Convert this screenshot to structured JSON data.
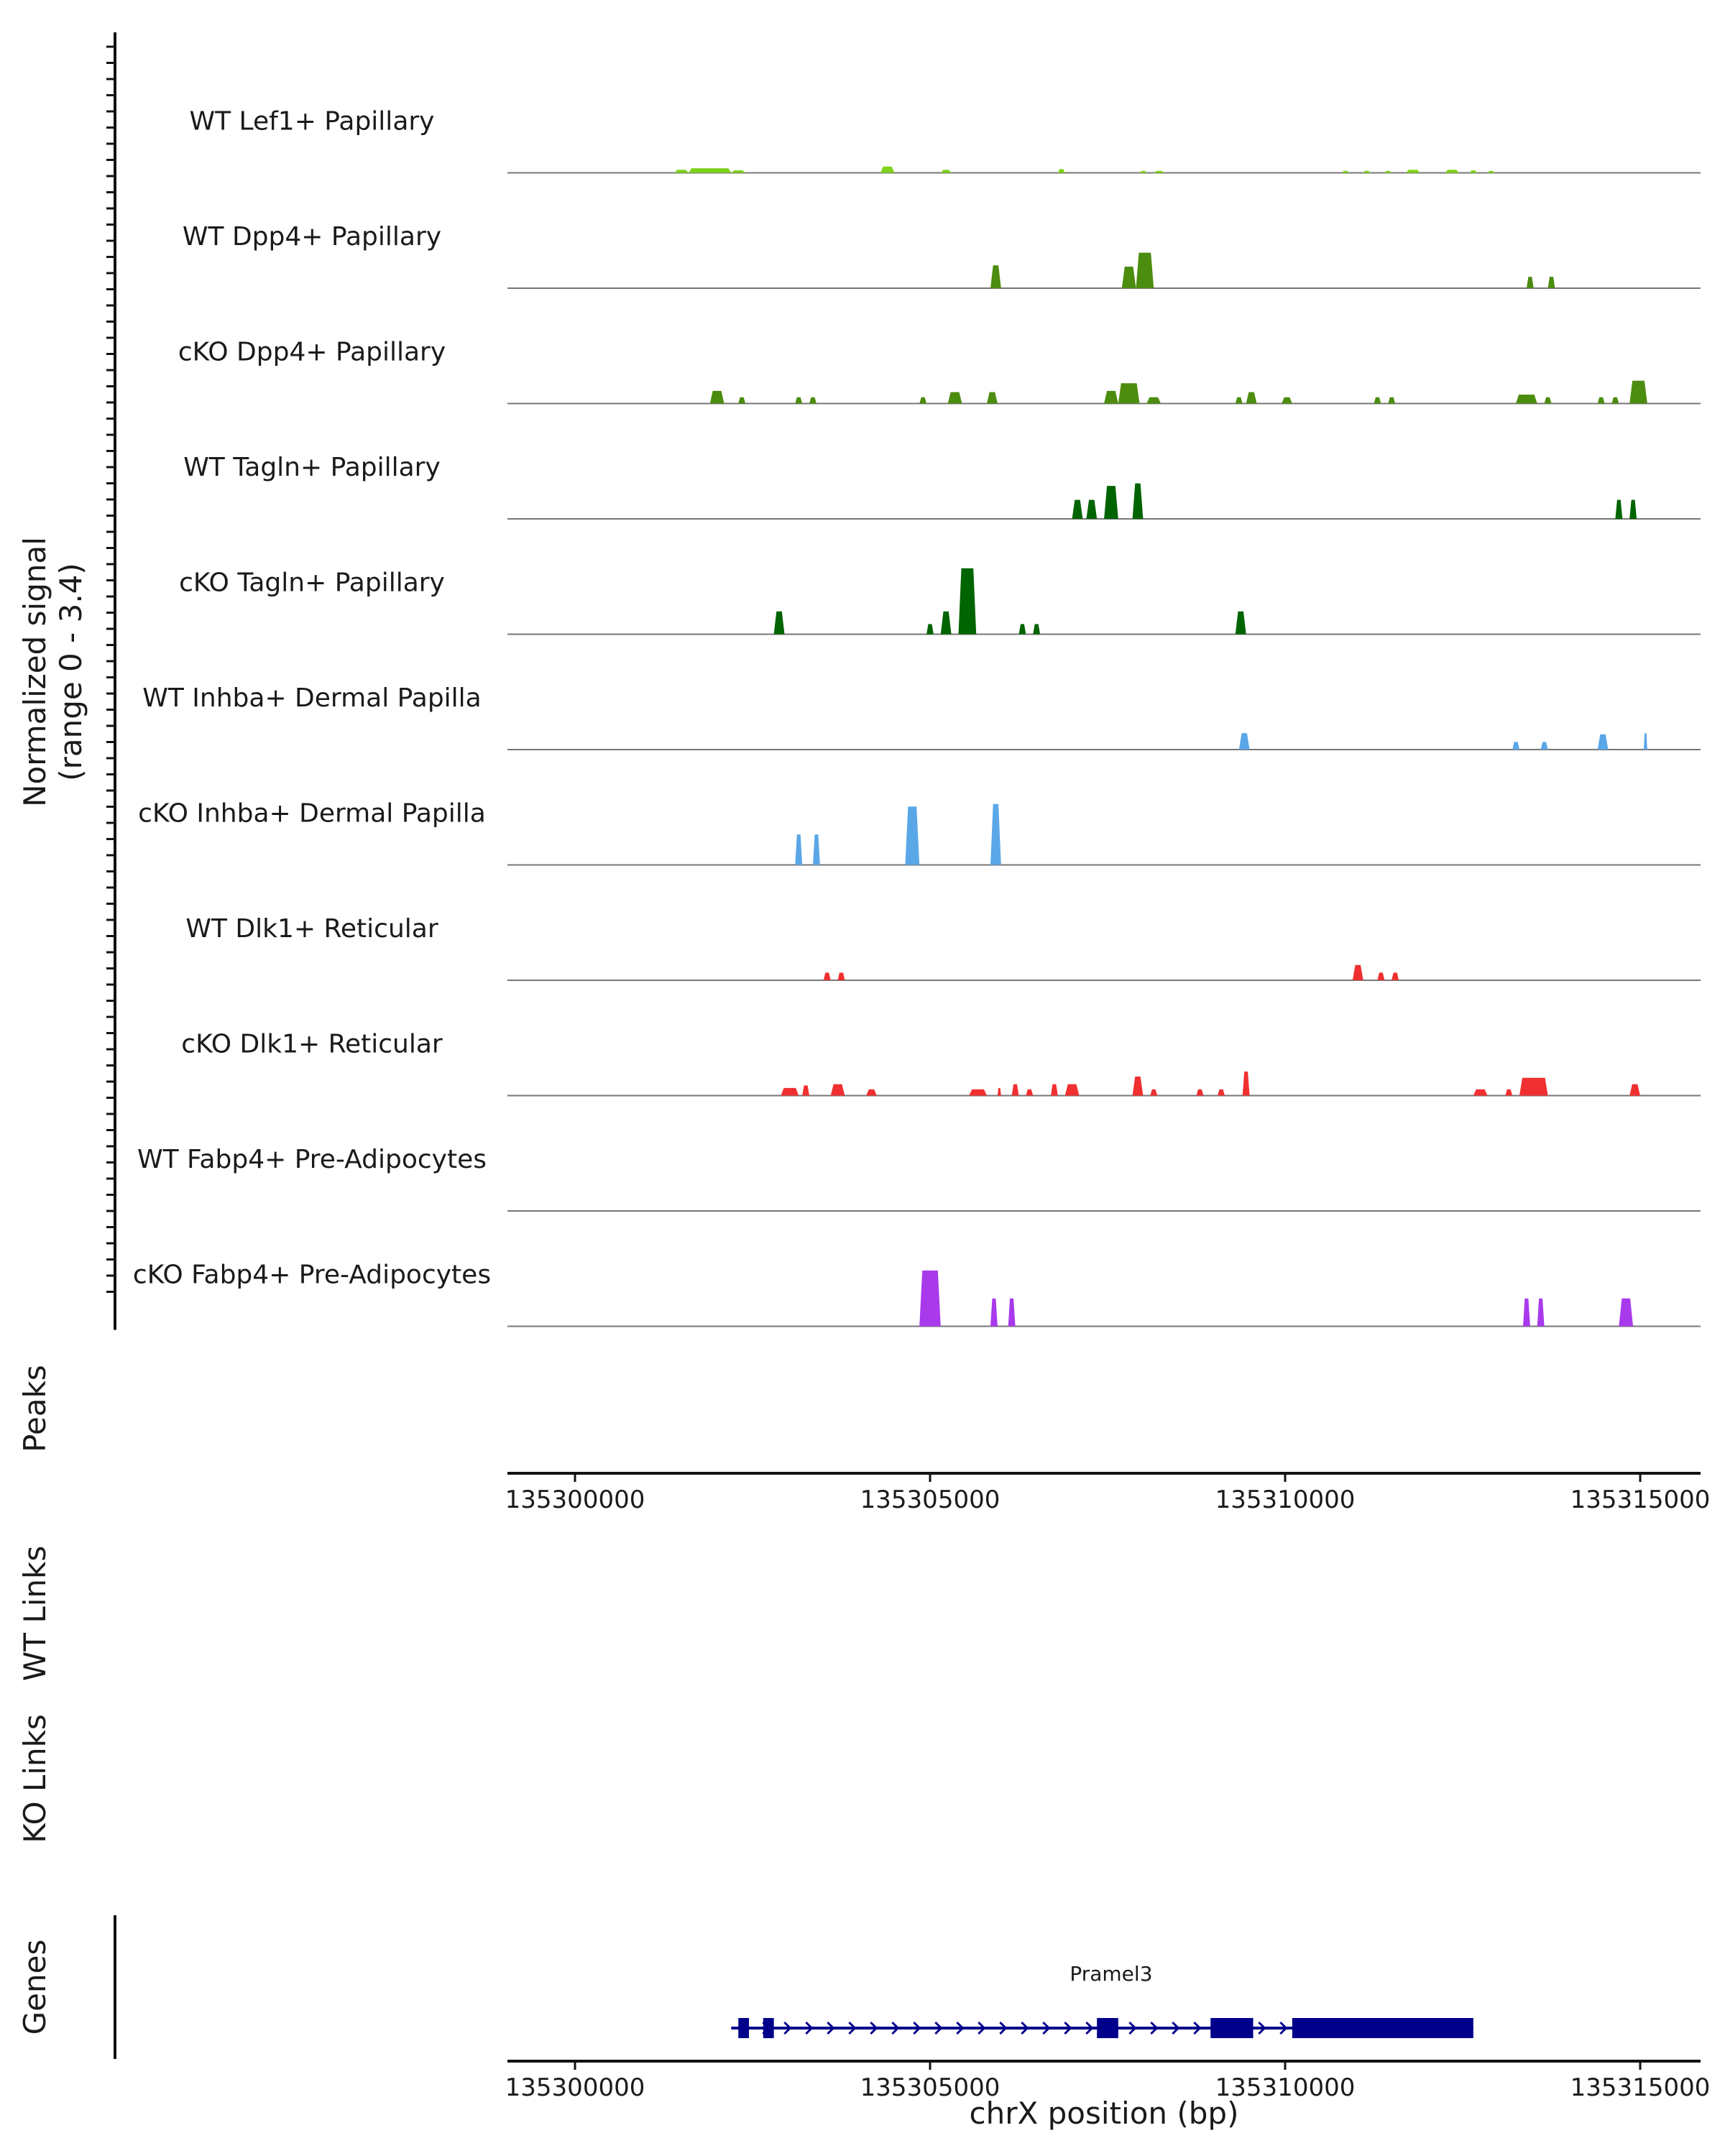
{
  "chart_data": {
    "type": "area",
    "title": "",
    "ylabel_line1": "Normalized signal",
    "ylabel_line2": "(range 0 - 3.4)",
    "ylim": [
      0,
      3.4
    ],
    "xlabel": "chrX position (bp)",
    "xlim": [
      135299000,
      135316000
    ],
    "xticks": [
      135300000,
      135305000,
      135310000,
      135315000
    ],
    "tracks": [
      {
        "name": "WT Lef1+ Papillary",
        "color": "#7FD11B",
        "peaks": [
          [
            135301400,
            135301600,
            0.12
          ],
          [
            135301600,
            135302200,
            0.18
          ],
          [
            135302200,
            135302400,
            0.1
          ],
          [
            135304300,
            135304500,
            0.25
          ],
          [
            135305150,
            135305300,
            0.12
          ],
          [
            135306800,
            135306900,
            0.15
          ],
          [
            135307950,
            135308050,
            0.08
          ],
          [
            135308150,
            135308300,
            0.08
          ],
          [
            135310800,
            135310900,
            0.08
          ],
          [
            135311100,
            135311200,
            0.08
          ],
          [
            135311400,
            135311500,
            0.08
          ],
          [
            135311700,
            135311900,
            0.12
          ],
          [
            135312250,
            135312450,
            0.12
          ],
          [
            135312600,
            135312700,
            0.1
          ],
          [
            135312850,
            135312950,
            0.08
          ]
        ]
      },
      {
        "name": "WT Dpp4+ Papillary",
        "color": "#4C8C0F",
        "peaks": [
          [
            135305850,
            135306000,
            0.9
          ],
          [
            135307700,
            135307900,
            0.85
          ],
          [
            135307900,
            135308150,
            1.4
          ],
          [
            135313400,
            135313500,
            0.45
          ],
          [
            135313700,
            135313800,
            0.45
          ]
        ]
      },
      {
        "name": "cKO Dpp4+ Papillary",
        "color": "#4C8C0F",
        "peaks": [
          [
            135301900,
            135302100,
            0.5
          ],
          [
            135302300,
            135302400,
            0.25
          ],
          [
            135303100,
            135303200,
            0.25
          ],
          [
            135303300,
            135303400,
            0.25
          ],
          [
            135304850,
            135304950,
            0.25
          ],
          [
            135305250,
            135305450,
            0.45
          ],
          [
            135305800,
            135305950,
            0.45
          ],
          [
            135307450,
            135307650,
            0.5
          ],
          [
            135307650,
            135307950,
            0.8
          ],
          [
            135308050,
            135308250,
            0.25
          ],
          [
            135309300,
            135309400,
            0.25
          ],
          [
            135309450,
            135309600,
            0.45
          ],
          [
            135309950,
            135310100,
            0.25
          ],
          [
            135311250,
            135311350,
            0.25
          ],
          [
            135311450,
            135311550,
            0.25
          ],
          [
            135313250,
            135313550,
            0.35
          ],
          [
            135313650,
            135313750,
            0.25
          ],
          [
            135314400,
            135314500,
            0.25
          ],
          [
            135314600,
            135314700,
            0.25
          ],
          [
            135314850,
            135315100,
            0.9
          ]
        ]
      },
      {
        "name": "WT Tagln+ Papillary",
        "color": "#006400",
        "peaks": [
          [
            135307000,
            135307150,
            0.75
          ],
          [
            135307200,
            135307350,
            0.75
          ],
          [
            135307450,
            135307650,
            1.3
          ],
          [
            135307850,
            135308000,
            1.4
          ],
          [
            135314650,
            135314750,
            0.75
          ],
          [
            135314850,
            135314950,
            0.75
          ]
        ]
      },
      {
        "name": "cKO Tagln+ Papillary",
        "color": "#006400",
        "peaks": [
          [
            135302800,
            135302950,
            0.9
          ],
          [
            135304950,
            135305050,
            0.4
          ],
          [
            135305150,
            135305300,
            0.9
          ],
          [
            135305400,
            135305650,
            2.6
          ],
          [
            135306250,
            135306350,
            0.4
          ],
          [
            135306450,
            135306550,
            0.4
          ],
          [
            135309300,
            135309450,
            0.9
          ]
        ]
      },
      {
        "name": "WT Inhba+ Dermal Papilla",
        "color": "#5AA7E8",
        "peaks": [
          [
            135309350,
            135309500,
            0.65
          ],
          [
            135313200,
            135313300,
            0.3
          ],
          [
            135313600,
            135313700,
            0.3
          ],
          [
            135314400,
            135314550,
            0.6
          ],
          [
            135315050,
            135315100,
            0.65
          ]
        ]
      },
      {
        "name": "cKO Inhba+ Dermal Papilla",
        "color": "#5AA7E8",
        "peaks": [
          [
            135303100,
            135303200,
            1.2
          ],
          [
            135303350,
            135303450,
            1.2
          ],
          [
            135304650,
            135304850,
            2.3
          ],
          [
            135305850,
            135306000,
            2.4
          ]
        ]
      },
      {
        "name": "WT Dlk1+ Reticular",
        "color": "#F03030",
        "peaks": [
          [
            135303500,
            135303600,
            0.3
          ],
          [
            135303700,
            135303800,
            0.3
          ],
          [
            135310950,
            135311100,
            0.6
          ],
          [
            135311300,
            135311400,
            0.3
          ],
          [
            135311500,
            135311600,
            0.3
          ]
        ]
      },
      {
        "name": "cKO Dlk1+ Reticular",
        "color": "#F03030",
        "peaks": [
          [
            135302900,
            135303150,
            0.3
          ],
          [
            135303200,
            135303300,
            0.4
          ],
          [
            135303600,
            135303800,
            0.45
          ],
          [
            135304100,
            135304250,
            0.25
          ],
          [
            135305550,
            135305800,
            0.25
          ],
          [
            135305950,
            135306000,
            0.3
          ],
          [
            135306150,
            135306250,
            0.45
          ],
          [
            135306350,
            135306450,
            0.25
          ],
          [
            135306700,
            135306800,
            0.45
          ],
          [
            135306900,
            135307100,
            0.45
          ],
          [
            135307850,
            135308000,
            0.75
          ],
          [
            135308100,
            135308200,
            0.25
          ],
          [
            135308750,
            135308850,
            0.25
          ],
          [
            135309050,
            135309150,
            0.25
          ],
          [
            135309400,
            135309500,
            0.95
          ],
          [
            135312650,
            135312850,
            0.25
          ],
          [
            135313100,
            135313200,
            0.25
          ],
          [
            135313300,
            135313700,
            0.7
          ],
          [
            135314850,
            135315000,
            0.45
          ]
        ]
      },
      {
        "name": "WT Fabp4+ Pre-Adipocytes",
        "color": "#A93AEC",
        "peaks": []
      },
      {
        "name": "cKO Fabp4+ Pre-Adipocytes",
        "color": "#A93AEC",
        "peaks": [
          [
            135304850,
            135305150,
            2.2
          ],
          [
            135305850,
            135305950,
            1.1
          ],
          [
            135306100,
            135306200,
            1.1
          ],
          [
            135313350,
            135313450,
            1.1
          ],
          [
            135313550,
            135313650,
            1.1
          ],
          [
            135314700,
            135314900,
            1.1
          ]
        ]
      }
    ],
    "side_labels": [
      "Peaks",
      "WT Links",
      "KO Links",
      "Genes"
    ],
    "gene": {
      "name": "Pramel3",
      "color": "#00008B",
      "start": 135302200,
      "end": 135312650,
      "exons": [
        [
          135302300,
          135302450
        ],
        [
          135302650,
          135302800
        ],
        [
          135307350,
          135307650
        ],
        [
          135308950,
          135309550
        ],
        [
          135310100,
          135312650
        ]
      ]
    }
  }
}
